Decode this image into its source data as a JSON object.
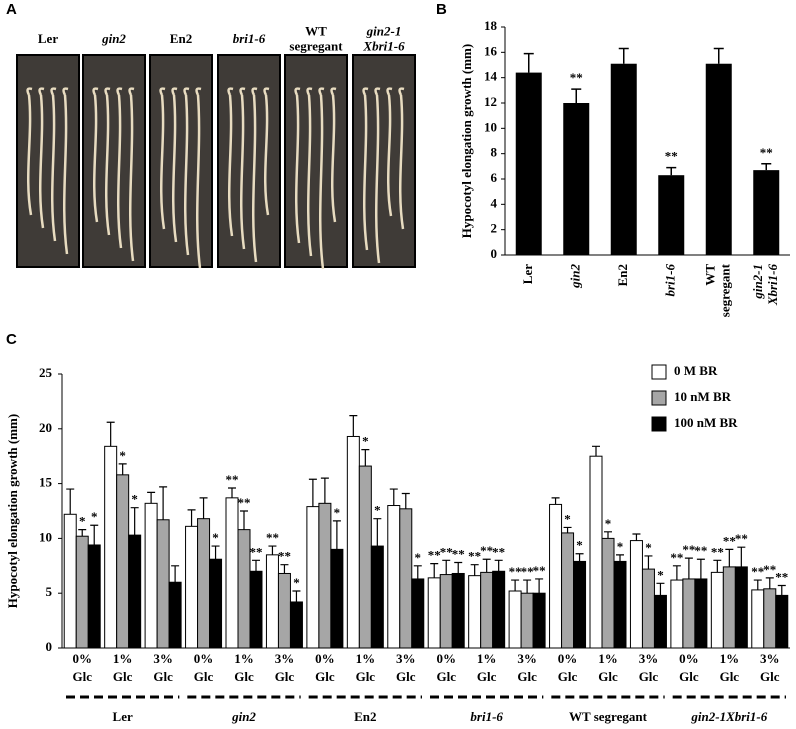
{
  "panel_labels": [
    "A",
    "B",
    "C"
  ],
  "photo_captions": [
    "Ler",
    "gin2",
    "En2",
    "bri1-6",
    "WT segregant",
    "gin2-1 Xbri1-6"
  ],
  "chart_data": [
    {
      "type": "bar",
      "y_label": "Hypocotyl elongation growth (mm)",
      "categories": [
        "Ler",
        "gin2",
        "En2",
        "bri1-6",
        "WT segregant",
        "gin2-1 Xbri1-6"
      ],
      "values": [
        14.4,
        12.0,
        15.1,
        6.3,
        15.1,
        6.7
      ],
      "errors": [
        1.5,
        1.1,
        1.2,
        0.6,
        1.2,
        0.5
      ],
      "annotations": [
        null,
        "**",
        null,
        "**",
        null,
        "**"
      ],
      "color": "#000000",
      "ylim": [
        0,
        18
      ],
      "yticks": [
        0,
        2,
        4,
        6,
        8,
        10,
        12,
        14,
        16,
        18
      ]
    },
    {
      "type": "grouped_bar",
      "y_label": "Hypocotyl elongation growth (mm)",
      "categories": [
        "0% Glc",
        "1% Glc",
        "3% Glc",
        "0% Glc",
        "1% Glc",
        "3% Glc",
        "0% Glc",
        "1% Glc",
        "3% Glc",
        "0% Glc",
        "1% Glc",
        "3% Glc",
        "0% Glc",
        "1% Glc",
        "3% Glc",
        "0% Glc",
        "1% Glc",
        "3% Glc"
      ],
      "groups": [
        "Ler",
        "gin2",
        "En2",
        "bri1-6",
        "WT segregant",
        "gin2-1Xbri1-6"
      ],
      "series": [
        {
          "name": "0 M BR",
          "color": "#ffffff",
          "values": [
            12.2,
            18.4,
            13.2,
            11.1,
            13.7,
            8.5,
            12.9,
            19.3,
            13.0,
            6.4,
            6.6,
            5.2,
            13.1,
            17.5,
            9.8,
            6.2,
            6.9,
            5.3
          ],
          "errors": [
            2.3,
            2.2,
            1.0,
            1.5,
            0.9,
            0.8,
            2.5,
            1.9,
            1.5,
            1.3,
            1.0,
            1.0,
            0.6,
            0.9,
            0.6,
            1.3,
            1.1,
            0.9
          ],
          "markers": [
            null,
            null,
            null,
            null,
            "**",
            "**",
            null,
            null,
            null,
            "**",
            "**",
            "**",
            null,
            null,
            null,
            "**",
            "**",
            "**"
          ]
        },
        {
          "name": "10 nM BR",
          "color": "#a6a6a6",
          "values": [
            10.2,
            15.8,
            11.7,
            11.8,
            10.8,
            6.8,
            13.2,
            16.6,
            12.7,
            6.7,
            6.9,
            5.0,
            10.5,
            10.0,
            7.2,
            6.3,
            7.4,
            5.4
          ],
          "errors": [
            0.6,
            1.0,
            3.0,
            1.9,
            1.7,
            0.8,
            2.3,
            1.5,
            1.4,
            1.3,
            1.2,
            1.2,
            0.5,
            0.6,
            1.2,
            1.9,
            1.6,
            1.0
          ],
          "markers": [
            "*",
            "*",
            null,
            null,
            "**",
            "**",
            null,
            "*",
            null,
            "**",
            "**",
            "**",
            "*",
            "*",
            "*",
            "**",
            "**",
            "**"
          ]
        },
        {
          "name": "100 nM BR",
          "color": "#000000",
          "values": [
            9.4,
            10.3,
            6.0,
            8.1,
            7.0,
            4.2,
            9.0,
            9.3,
            6.3,
            6.8,
            7.0,
            5.0,
            7.9,
            7.9,
            4.8,
            6.3,
            7.4,
            4.8
          ],
          "errors": [
            1.8,
            2.5,
            1.5,
            1.2,
            1.0,
            1.0,
            2.6,
            2.5,
            1.2,
            1.0,
            1.0,
            1.3,
            0.7,
            0.6,
            1.1,
            1.8,
            1.8,
            0.9
          ],
          "markers": [
            "*",
            "*",
            null,
            "*",
            "**",
            "*",
            "*",
            "*",
            "*",
            "**",
            "**",
            "**",
            "*",
            "*",
            "*",
            "**",
            "**",
            "**"
          ]
        }
      ],
      "ylim": [
        0,
        25
      ],
      "yticks": [
        0,
        5,
        10,
        15,
        20,
        25
      ],
      "legend": "upper right"
    }
  ]
}
